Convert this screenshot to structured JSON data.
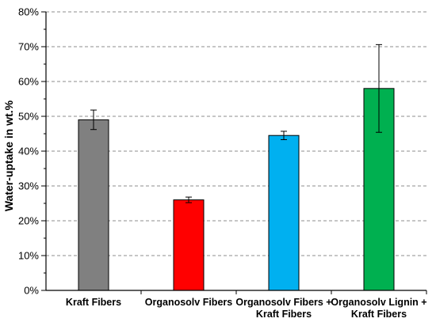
{
  "chart_data": {
    "type": "bar",
    "title": "",
    "xlabel": "",
    "ylabel": "Water-uptake in wt.%",
    "ylim": [
      0,
      80
    ],
    "y_unit": "%",
    "y_ticks": [
      "0%",
      "10%",
      "20%",
      "30%",
      "40%",
      "50%",
      "60%",
      "70%",
      "80%"
    ],
    "grid": "horizontal dashed",
    "legend": "none",
    "categories": [
      [
        "Kraft Fibers"
      ],
      [
        "Organosolv Fibers"
      ],
      [
        "Organosolv Fibers +",
        "Kraft Fibers"
      ],
      [
        "Organosolv Lignin +",
        "Kraft Fibers"
      ]
    ],
    "values": [
      49,
      26,
      44.5,
      58
    ],
    "error": [
      2.8,
      0.8,
      1.2,
      12.6
    ],
    "colors": [
      "#808080",
      "#ff0000",
      "#00b0f0",
      "#00b050"
    ]
  }
}
